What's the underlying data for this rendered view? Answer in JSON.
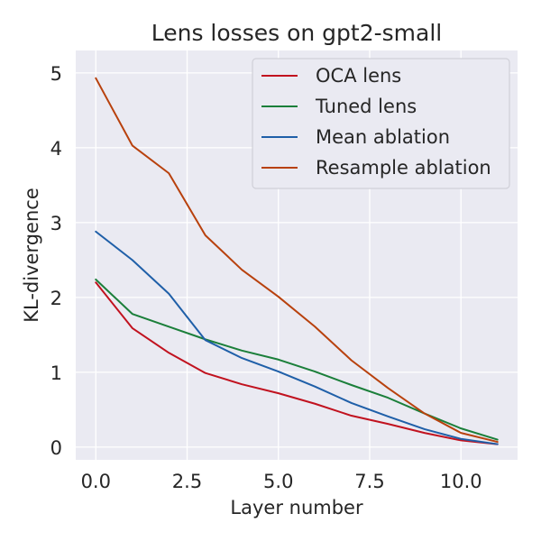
{
  "chart_data": {
    "type": "line",
    "title": "Lens losses on gpt2-small",
    "xlabel": "Layer number",
    "ylabel": "KL-divergence",
    "xlim": [
      -0.55,
      11.55
    ],
    "ylim": [
      -0.17,
      5.3
    ],
    "x_ticks": [
      0.0,
      2.5,
      5.0,
      7.5,
      10.0
    ],
    "x_tick_labels": [
      "0.0",
      "2.5",
      "5.0",
      "7.5",
      "10.0"
    ],
    "y_ticks": [
      0,
      1,
      2,
      3,
      4,
      5
    ],
    "y_tick_labels": [
      "0",
      "1",
      "2",
      "3",
      "4",
      "5"
    ],
    "grid": true,
    "legend_position": "top-right",
    "x": [
      0,
      1,
      2,
      3,
      4,
      5,
      6,
      7,
      8,
      9,
      10,
      11
    ],
    "series": [
      {
        "name": "OCA lens",
        "color": "#c1121f",
        "values": [
          2.2,
          1.59,
          1.26,
          0.99,
          0.84,
          0.72,
          0.58,
          0.42,
          0.31,
          0.19,
          0.09,
          0.04
        ]
      },
      {
        "name": "Tuned lens",
        "color": "#1b7f3a",
        "values": [
          2.24,
          1.78,
          1.61,
          1.44,
          1.29,
          1.17,
          1.01,
          0.83,
          0.66,
          0.45,
          0.25,
          0.1
        ]
      },
      {
        "name": "Mean ablation",
        "color": "#1f5fa8",
        "values": [
          2.88,
          2.5,
          2.05,
          1.43,
          1.19,
          1.01,
          0.81,
          0.59,
          0.41,
          0.24,
          0.11,
          0.04
        ]
      },
      {
        "name": "Resample ablation",
        "color": "#b8410d",
        "values": [
          4.93,
          4.03,
          3.66,
          2.83,
          2.37,
          2.01,
          1.61,
          1.16,
          0.79,
          0.45,
          0.19,
          0.07
        ]
      }
    ]
  }
}
